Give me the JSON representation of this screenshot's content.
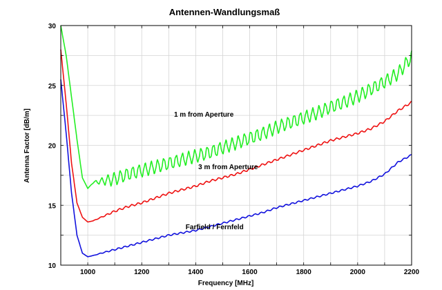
{
  "chart_data": {
    "type": "line",
    "title": "Antennen-Wandlungsmaß",
    "xlabel": "Frequency [MHz]",
    "ylabel": "Antenna Factor [dB/m]",
    "xlim": [
      900,
      2200
    ],
    "ylim": [
      10,
      30
    ],
    "xticks": [
      1000,
      1200,
      1400,
      1600,
      1800,
      2000,
      2200
    ],
    "yticks": [
      10,
      15,
      20,
      25,
      30
    ],
    "grid": true,
    "series": [
      {
        "name": "1 m from Aperture",
        "color": "#22ee22",
        "ripple": 0.5,
        "x": [
          900,
          920,
          940,
          960,
          980,
          1000,
          1020,
          1050,
          1100,
          1150,
          1200,
          1250,
          1300,
          1350,
          1400,
          1450,
          1500,
          1550,
          1600,
          1650,
          1700,
          1750,
          1800,
          1850,
          1900,
          1950,
          2000,
          2050,
          2100,
          2150,
          2200
        ],
        "y": [
          30.0,
          27.5,
          24.0,
          20.5,
          17.3,
          16.4,
          16.9,
          17.0,
          17.2,
          17.6,
          17.9,
          18.2,
          18.5,
          18.8,
          19.1,
          19.4,
          19.8,
          20.2,
          20.6,
          21.0,
          21.5,
          21.9,
          22.3,
          22.7,
          23.2,
          23.6,
          24.1,
          24.7,
          25.3,
          26.0,
          27.4
        ]
      },
      {
        "name": "3 m from Aperture",
        "color": "#ee1111",
        "ripple": 0.08,
        "x": [
          900,
          920,
          940,
          960,
          980,
          1000,
          1020,
          1050,
          1100,
          1150,
          1200,
          1250,
          1300,
          1350,
          1400,
          1450,
          1500,
          1550,
          1600,
          1650,
          1700,
          1750,
          1800,
          1850,
          1900,
          1950,
          2000,
          2050,
          2100,
          2150,
          2200
        ],
        "y": [
          28.0,
          23.5,
          18.5,
          15.2,
          14.0,
          13.6,
          13.7,
          14.0,
          14.5,
          14.9,
          15.2,
          15.6,
          16.0,
          16.3,
          16.6,
          17.0,
          17.3,
          17.6,
          18.0,
          18.4,
          18.8,
          19.2,
          19.6,
          20.0,
          20.4,
          20.7,
          21.0,
          21.4,
          22.0,
          22.9,
          23.6
        ]
      },
      {
        "name": "Farfield / Fernfeld",
        "color": "#1111dd",
        "ripple": 0.06,
        "x": [
          900,
          920,
          940,
          960,
          980,
          1000,
          1020,
          1050,
          1100,
          1150,
          1200,
          1250,
          1300,
          1350,
          1400,
          1450,
          1500,
          1550,
          1600,
          1650,
          1700,
          1750,
          1800,
          1850,
          1900,
          1950,
          2000,
          2050,
          2100,
          2150,
          2200
        ],
        "y": [
          25.5,
          21.0,
          16.0,
          12.5,
          11.0,
          10.7,
          10.8,
          11.0,
          11.3,
          11.6,
          11.9,
          12.2,
          12.5,
          12.7,
          12.9,
          13.2,
          13.5,
          13.8,
          14.1,
          14.4,
          14.8,
          15.1,
          15.4,
          15.7,
          16.0,
          16.3,
          16.6,
          17.0,
          17.6,
          18.6,
          19.2
        ]
      }
    ],
    "annotations": [
      {
        "text": "1 m from Aperture",
        "x": 1430,
        "y": 22.4
      },
      {
        "text": "3 m from Aperture",
        "x": 1520,
        "y": 18.0
      },
      {
        "text": "Farfield / Fernfeld",
        "x": 1470,
        "y": 13.0
      }
    ]
  }
}
